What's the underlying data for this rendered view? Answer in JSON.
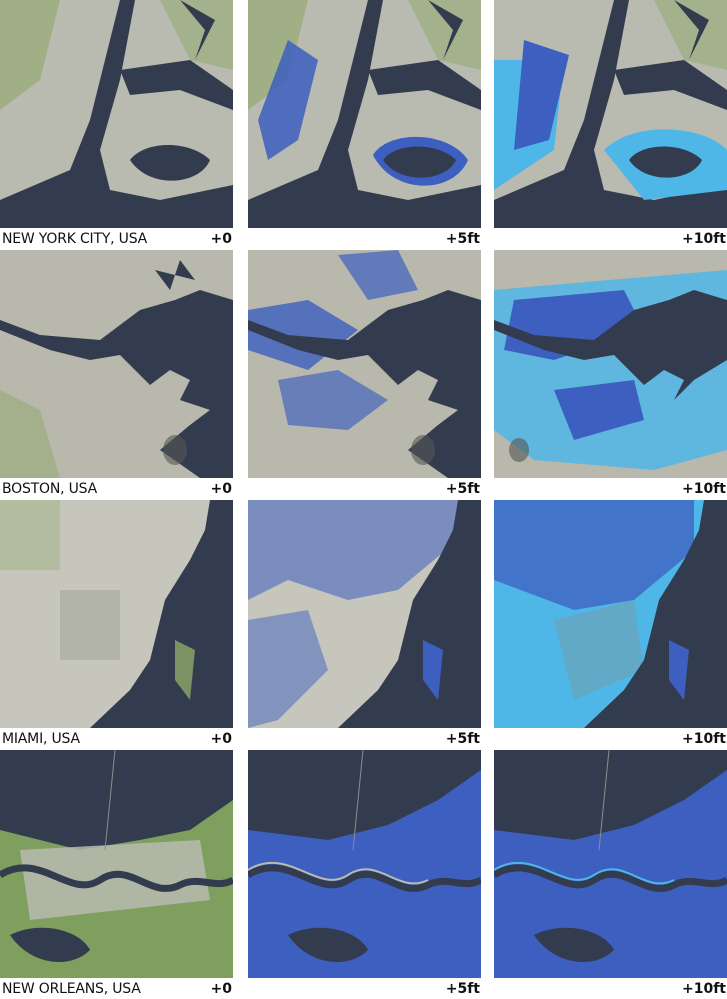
{
  "rows": [
    {
      "city": "NEW YORK CITY, USA",
      "labels": [
        "+0",
        "+5ft",
        "+10ft"
      ]
    },
    {
      "city": "BOSTON, USA",
      "labels": [
        "+0",
        "+5ft",
        "+10ft"
      ]
    },
    {
      "city": "MIAMI, USA",
      "labels": [
        "+0",
        "+5ft",
        "+10ft"
      ]
    },
    {
      "city": "NEW ORLEANS, USA",
      "labels": [
        "+0",
        "+5ft",
        "+10ft"
      ]
    }
  ],
  "colors": {
    "water": "#333c4e",
    "land": "#b8b8ad",
    "vegetation": "#7f9f5e",
    "flood_5ft": "#3d5fbf",
    "flood_10ft": "#4fb6e8"
  }
}
